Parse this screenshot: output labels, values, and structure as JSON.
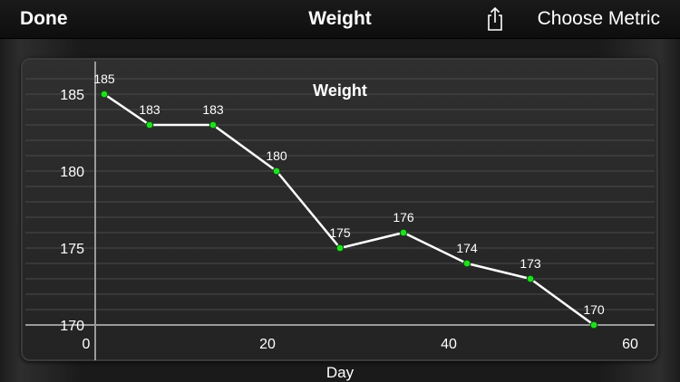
{
  "nav": {
    "done_label": "Done",
    "title": "Weight",
    "choose_label": "Choose Metric"
  },
  "icons": {
    "share": "share-icon"
  },
  "colors": {
    "line": "#ffffff",
    "point": "#22dd22",
    "axis": "#9a9a9a",
    "grid": "#4a4a4a"
  },
  "chart_data": {
    "type": "line",
    "title": "Weight",
    "xlabel": "Day",
    "ylabel": "",
    "xlim": [
      0,
      60
    ],
    "ylim": [
      170,
      185
    ],
    "xticks": [
      0,
      20,
      40,
      60
    ],
    "yticks": [
      170,
      175,
      180,
      185
    ],
    "grid": true,
    "series": [
      {
        "x": [
          1,
          6,
          13,
          20,
          27,
          34,
          41,
          48,
          55
        ],
        "values": [
          185,
          183,
          183,
          180,
          175,
          176,
          174,
          173,
          170
        ],
        "labels": [
          "185",
          "183",
          "183",
          "180",
          "175",
          "176",
          "174",
          "173",
          "170"
        ]
      }
    ]
  }
}
